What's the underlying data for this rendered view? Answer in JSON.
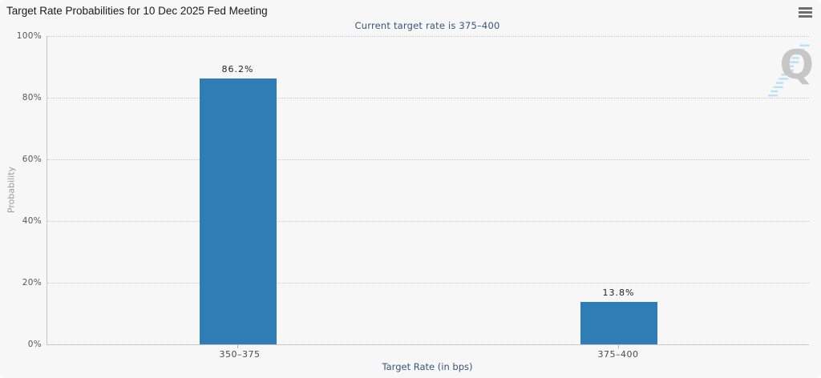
{
  "icons": {
    "menu": "hamburger-icon",
    "watermark": "quikstrike-q-logo"
  },
  "chart_data": {
    "type": "bar",
    "title": "Target Rate Probabilities for 10 Dec 2025 Fed Meeting",
    "subtitle": "Current target rate is 375–400",
    "categories": [
      "350–375",
      "375–400"
    ],
    "values": [
      86.2,
      13.8
    ],
    "value_labels": [
      "86.2%",
      "13.8%"
    ],
    "xlabel": "Target Rate (in bps)",
    "ylabel": "Probability",
    "ylim": [
      0,
      100
    ],
    "y_ticks": [
      "100%",
      "80%",
      "60%",
      "40%",
      "20%",
      "0%"
    ],
    "grid": "horizontal-dotted",
    "legend": "none",
    "bar_color": "#2e7db4",
    "watermark_letter": "Q",
    "colors": {
      "background": "#f7f7f7",
      "bar": "#2e7db4",
      "title_text": "#1a1a1a",
      "subtitle_text": "#35567a",
      "axis_title_text": "#35567a",
      "tick_text": "#575757",
      "grid_line": "#c9c9c9",
      "watermark_gray": "#c6c6c6",
      "watermark_blue": "#b8e2f3"
    }
  }
}
